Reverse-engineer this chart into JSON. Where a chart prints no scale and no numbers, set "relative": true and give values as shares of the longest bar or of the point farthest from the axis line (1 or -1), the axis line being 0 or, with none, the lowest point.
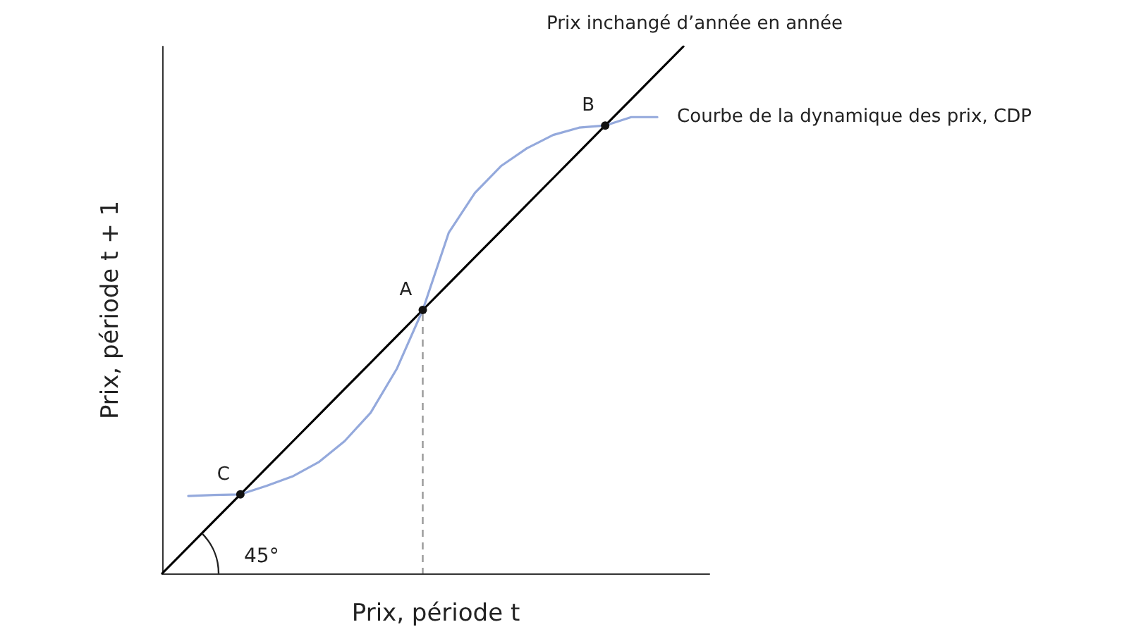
{
  "chart_data": {
    "type": "line",
    "xlabel": "Prix, période t",
    "ylabel": "Prix, période t + 1",
    "relative": true,
    "categories": [
      null,
      null,
      null,
      null,
      null,
      null,
      null,
      null,
      null,
      null,
      null,
      null,
      null,
      null,
      null,
      null,
      null,
      null,
      null,
      null,
      null,
      null
    ],
    "series": [
      {
        "name": "Prix inchangé d’année en année",
        "color": "#000000",
        "values": [
          0,
          0.05,
          0.1,
          0.15,
          0.2,
          0.25,
          0.3,
          0.35,
          0.4,
          0.45,
          0.5,
          0.55,
          0.6,
          0.65,
          0.7,
          0.75,
          0.8,
          0.85,
          0.9,
          0.95,
          1,
          null
        ]
      },
      {
        "name": "Courbe de la dynamique des prix, CDP",
        "color": "#94a9dc",
        "values": [
          null,
          0.147,
          0.149,
          0.15,
          0.166,
          0.184,
          0.211,
          0.251,
          0.305,
          0.388,
          0.5,
          0.647,
          0.722,
          0.773,
          0.807,
          0.832,
          0.846,
          0.85,
          0.866,
          0.866,
          null,
          null
        ]
      }
    ],
    "annotations": [
      "C",
      "A",
      "B",
      "45°"
    ]
  }
}
